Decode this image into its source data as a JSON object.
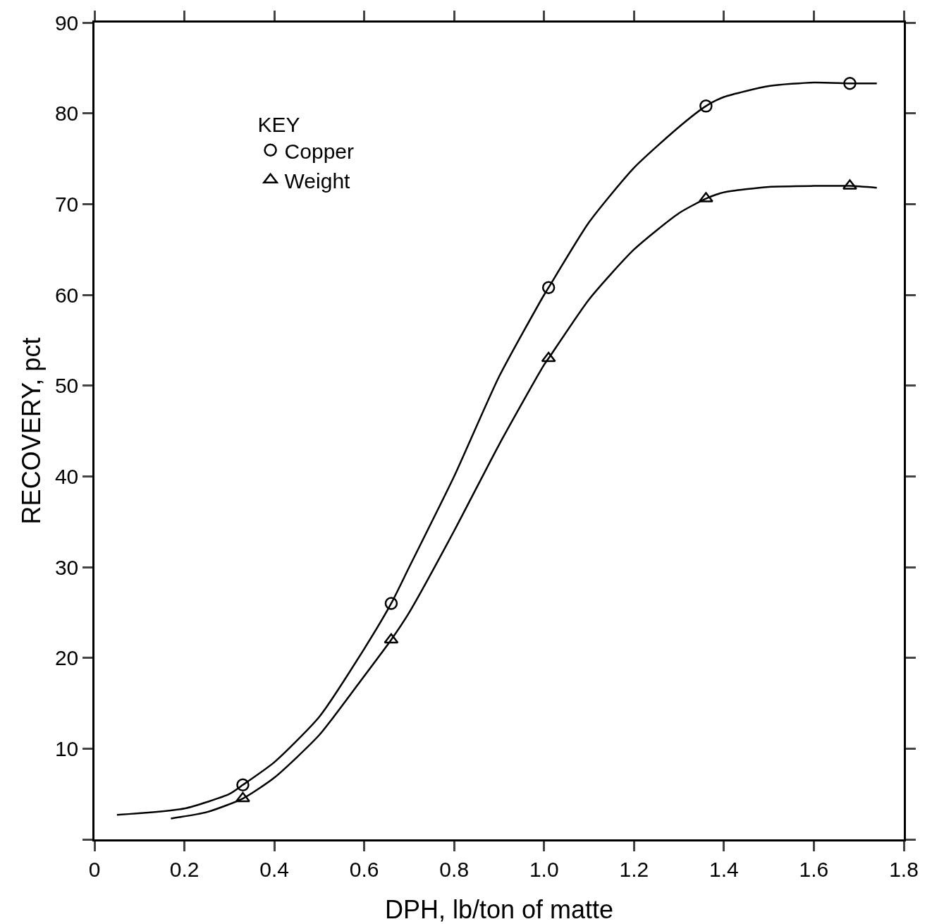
{
  "chart_data": {
    "type": "line",
    "xlabel": "DPH, lb/ton of matte",
    "ylabel": "RECOVERY, pct",
    "legend_title": "KEY",
    "legend": "top left",
    "grid": false,
    "xlim": [
      0,
      1.8
    ],
    "xticks": [
      0,
      0.2,
      0.4,
      0.6,
      0.8,
      {
        "value": 1,
        "label": "1.0"
      },
      1.2,
      1.4,
      1.6,
      1.8
    ],
    "ylim": [
      0,
      90
    ],
    "yticks": [
      {
        "value": 0,
        "label": null
      },
      10,
      20,
      30,
      40,
      50,
      60,
      70,
      80,
      90
    ],
    "series": [
      {
        "type": "line",
        "color": "#000000",
        "marker": "none",
        "x": [
          0.05,
          0.2,
          0.3,
          0.33,
          0.4,
          0.5,
          0.6,
          0.66,
          0.7,
          0.8,
          0.9,
          1.0,
          1.01,
          1.1,
          1.2,
          1.3,
          1.36,
          1.4,
          1.5,
          1.6,
          1.68,
          1.74
        ],
        "values": [
          2.7,
          3.4,
          5,
          6,
          8.5,
          13.5,
          21,
          26,
          30,
          40,
          51,
          60,
          60.8,
          68,
          74,
          78.5,
          80.8,
          81.8,
          83,
          83.4,
          83.3,
          83.3
        ]
      },
      {
        "type": "line",
        "color": "#000000",
        "marker": "none",
        "x": [
          0.17,
          0.25,
          0.33,
          0.4,
          0.5,
          0.6,
          0.66,
          0.7,
          0.8,
          0.9,
          1.0,
          1.01,
          1.1,
          1.2,
          1.3,
          1.36,
          1.4,
          1.5,
          1.6,
          1.68,
          1.74
        ],
        "values": [
          2.3,
          3,
          4.5,
          6.8,
          11.5,
          18,
          22,
          25,
          34,
          43.5,
          52.3,
          53,
          59.5,
          65,
          69,
          70.6,
          71.3,
          71.9,
          72,
          72,
          71.8
        ]
      },
      {
        "type": "scatter",
        "name": "Copper",
        "color": "#000000",
        "marker": "circle",
        "x": [
          0.33,
          0.66,
          1.01,
          1.36,
          1.68
        ],
        "values": [
          6,
          26,
          60.8,
          80.8,
          83.3
        ]
      },
      {
        "type": "scatter",
        "name": "Weight",
        "color": "#000000",
        "marker": "triangle",
        "x": [
          0.33,
          0.66,
          1.01,
          1.36,
          1.68
        ],
        "values": [
          4.5,
          22,
          53,
          70.6,
          72
        ]
      }
    ]
  }
}
